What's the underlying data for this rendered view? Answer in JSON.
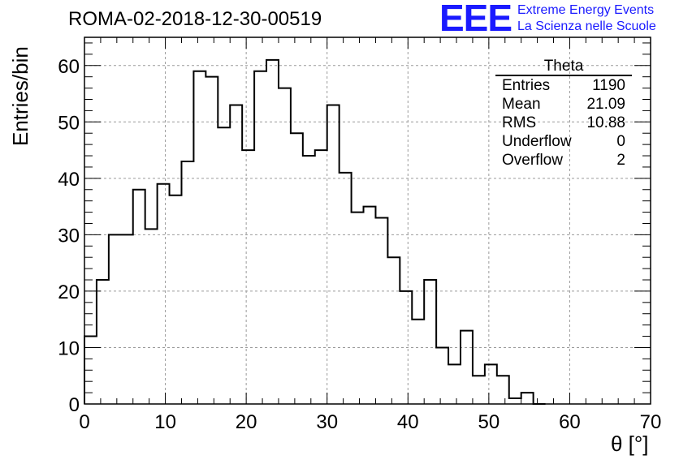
{
  "header": {
    "title": "ROMA-02-2018-12-30-00519",
    "logo_mark": "EEE",
    "logo_line1": "Extreme Energy Events",
    "logo_line2": "La Scienza nelle Scuole"
  },
  "stats_box": {
    "title": "Theta",
    "rows": [
      {
        "label": "Entries",
        "value": "1190"
      },
      {
        "label": "Mean",
        "value": "21.09"
      },
      {
        "label": "RMS",
        "value": "10.88"
      },
      {
        "label": "Underflow",
        "value": "0"
      },
      {
        "label": "Overflow",
        "value": "2"
      }
    ]
  },
  "colors": {
    "line": "#000000",
    "grid": "#9a9a9a",
    "logo": "#1a1aff"
  },
  "chart_data": {
    "type": "histogram",
    "xlabel": "θ [°]",
    "ylabel": "Entries/bin",
    "xlim": [
      0,
      70
    ],
    "ylim": [
      0,
      65
    ],
    "xticks": [
      0,
      10,
      20,
      30,
      40,
      50,
      60,
      70
    ],
    "yticks": [
      0,
      10,
      20,
      30,
      40,
      50,
      60
    ],
    "grid": true,
    "bin_width": 1.5,
    "bin_edges_start": 0,
    "values": [
      12,
      22,
      30,
      30,
      38,
      31,
      39,
      37,
      43,
      59,
      58,
      49,
      53,
      45,
      59,
      61,
      56,
      48,
      44,
      45,
      53,
      41,
      34,
      35,
      33,
      26,
      20,
      15,
      22,
      10,
      7,
      13,
      5,
      7,
      5,
      1,
      2,
      0
    ]
  }
}
